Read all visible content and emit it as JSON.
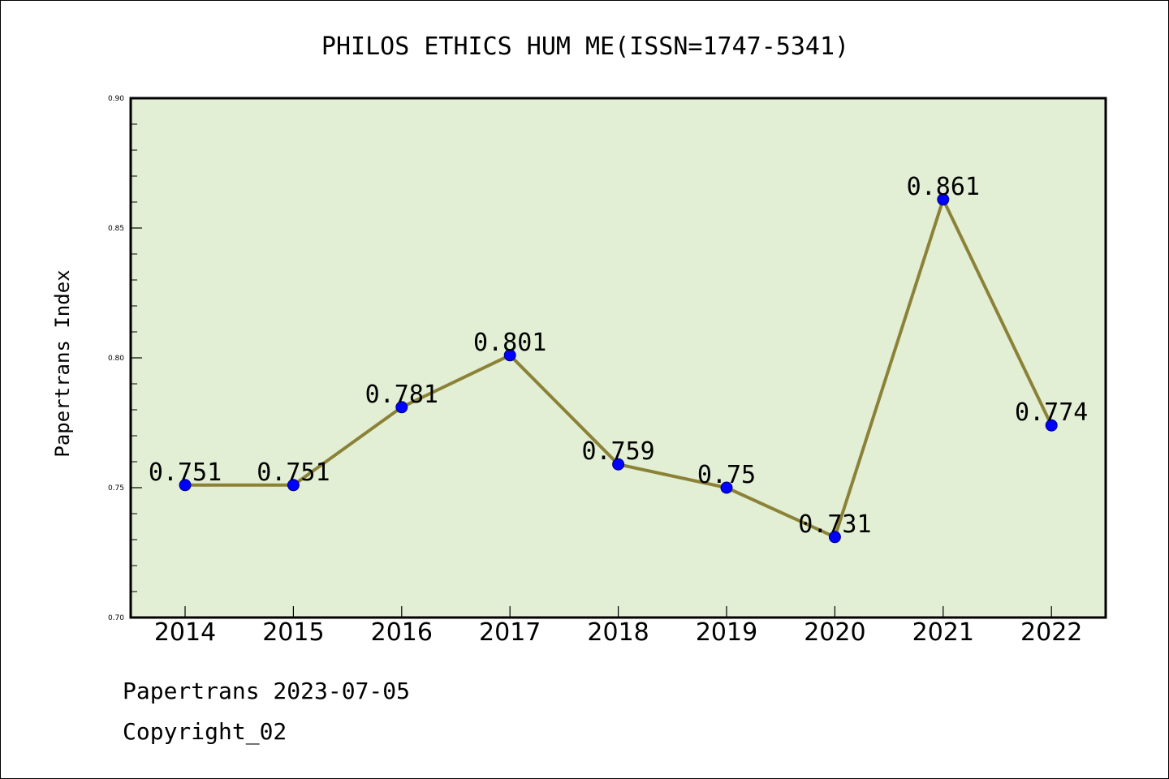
{
  "chart_data": {
    "type": "line",
    "title": "PHILOS ETHICS HUM ME(ISSN=1747-5341)",
    "xlabel": "",
    "ylabel": "Papertrans Index",
    "categories": [
      "2014",
      "2015",
      "2016",
      "2017",
      "2018",
      "2019",
      "2020",
      "2021",
      "2022"
    ],
    "series": [
      {
        "values": [
          0.751,
          0.751,
          0.781,
          0.801,
          0.759,
          0.75,
          0.731,
          0.861,
          0.774
        ],
        "labels": [
          "0.751",
          "0.751",
          "0.781",
          "0.801",
          "0.759",
          "0.75",
          "0.731",
          "0.861",
          "0.774"
        ]
      }
    ],
    "ylim": [
      0.7,
      0.9
    ],
    "yticks": [
      0.7,
      0.75,
      0.8,
      0.85,
      0.9
    ],
    "ytick_labels": [
      "0.70",
      "0.75",
      "0.80",
      "0.85",
      "0.90"
    ],
    "grid": false,
    "legend": "none"
  },
  "colors": {
    "plot_background": "#e2efd4",
    "line": "#8b8238",
    "marker_fill": "#0000ff",
    "marker_edge": "#000080",
    "axes": "#000000"
  },
  "footer": {
    "line1": "Papertrans 2023-07-05",
    "line2": "Copyright_02"
  }
}
